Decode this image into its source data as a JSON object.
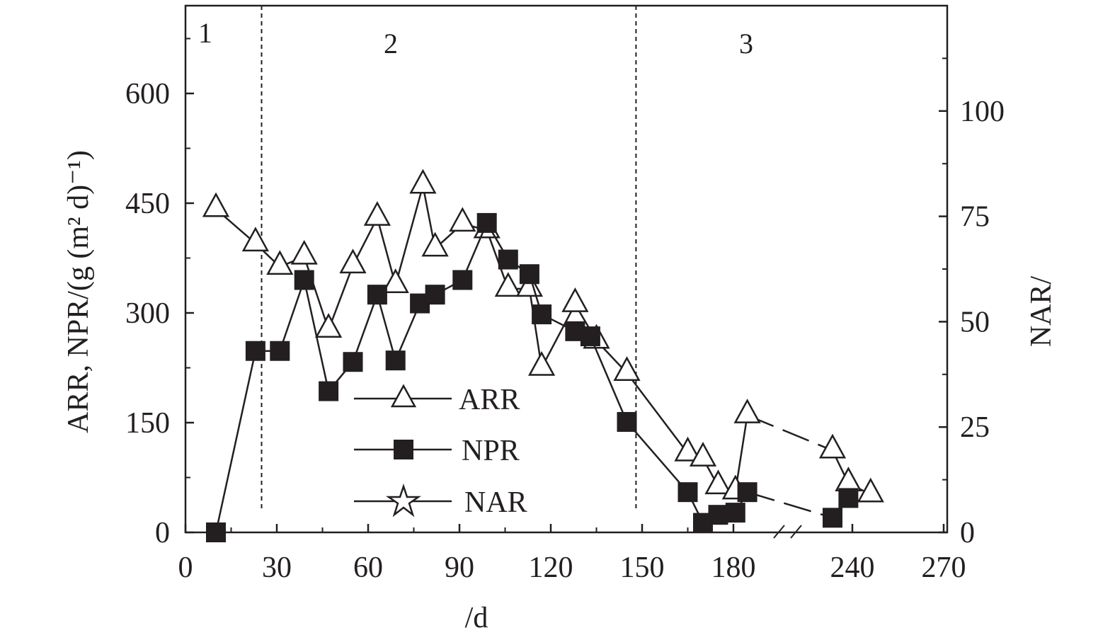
{
  "chart_data": {
    "type": "line",
    "x_tick_labels": [
      "0",
      "30",
      "60",
      "90",
      "120",
      "150",
      "180",
      "240",
      "270"
    ],
    "xlabel": "/d",
    "ylabel": "ARR, NPR/(g (m² d)⁻¹)",
    "ylabel_right": "NAR/",
    "ylim": [
      0,
      720
    ],
    "ylim_right": [
      0,
      125
    ],
    "y_ticks": [
      0,
      150,
      300,
      450,
      600
    ],
    "y_ticks_right": [
      0,
      25,
      50,
      75,
      100
    ],
    "phase_labels": [
      "1",
      "2",
      "3"
    ],
    "phase_boundaries_days": [
      25,
      148
    ],
    "axis_break": "between 180 and 240",
    "legend": {
      "placement": "bottom-center",
      "entries": [
        "ARR",
        "NPR",
        "NAR"
      ]
    },
    "series": [
      {
        "name": "ARR",
        "marker": "open-triangle",
        "x": [
          10,
          23,
          31,
          39,
          47,
          55,
          63,
          69,
          78,
          82,
          91,
          99,
          106,
          113,
          117,
          128,
          135,
          145,
          165,
          170,
          175,
          181,
          187,
          230,
          238,
          246
        ],
        "y": [
          442,
          395,
          363,
          377,
          277,
          365,
          430,
          338,
          474,
          388,
          422,
          413,
          333,
          333,
          225,
          312,
          262,
          218,
          108,
          101,
          63,
          56,
          160,
          112,
          67,
          52
        ],
        "dashed_after_x": 187
      },
      {
        "name": "NPR",
        "marker": "filled-square",
        "x": [
          10,
          23,
          31,
          39,
          47,
          55,
          63,
          69,
          77,
          82,
          91,
          99,
          106,
          113,
          117,
          128,
          133,
          145,
          165,
          170,
          175,
          181,
          187,
          230,
          238
        ],
        "y": [
          0,
          248,
          248,
          345,
          193,
          233,
          325,
          235,
          313,
          325,
          345,
          423,
          373,
          353,
          298,
          275,
          268,
          151,
          55,
          13,
          24,
          27,
          55,
          20,
          47
        ],
        "dashed_after_x": 187
      },
      {
        "name": "NAR",
        "marker": "open-star",
        "x": [],
        "y": []
      }
    ]
  }
}
